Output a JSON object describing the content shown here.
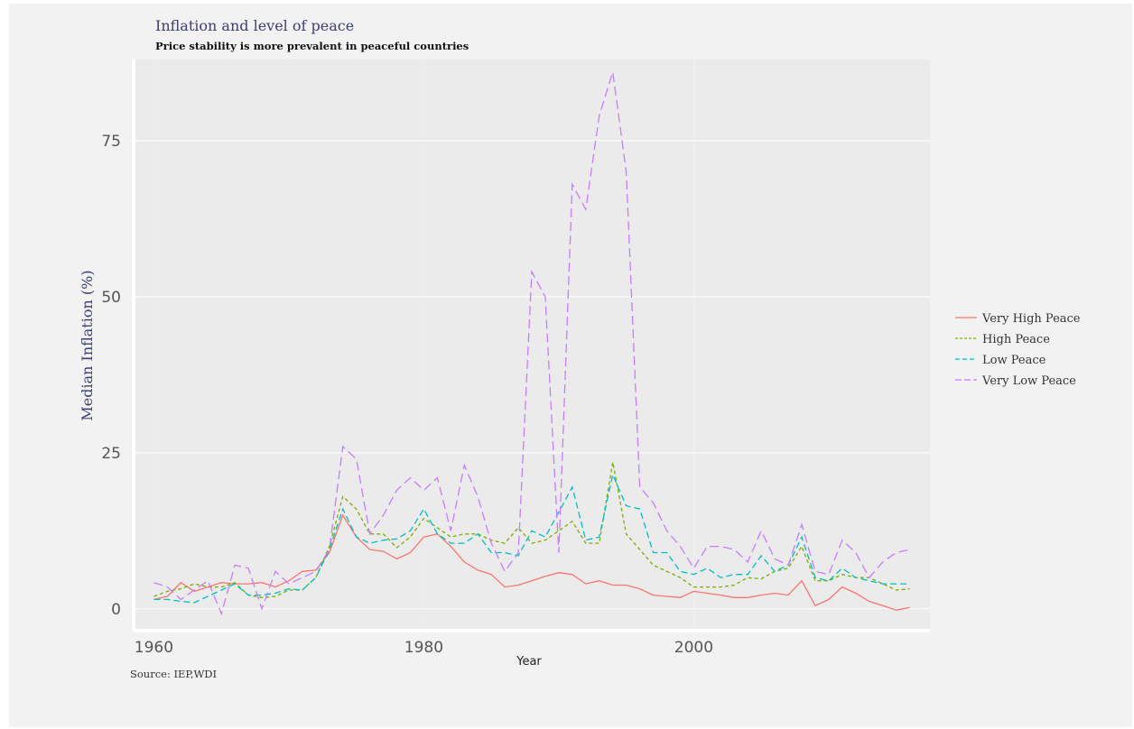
{
  "chart_data": {
    "type": "line",
    "title": "Inflation and level of peace",
    "subtitle": "Price stability is more prevalent in peaceful countries",
    "xlabel": "Year",
    "ylabel": "Median Inflation (%)",
    "caption": "Source: IEP,WDI",
    "xlim": [
      1958.5,
      2017.5
    ],
    "ylim": [
      -3.5,
      88
    ],
    "x_ticks": [
      1960,
      1980,
      2000
    ],
    "y_ticks": [
      0,
      25,
      50,
      75
    ],
    "grid": true,
    "legend_position": "right",
    "x": [
      1960,
      1961,
      1962,
      1963,
      1964,
      1965,
      1966,
      1967,
      1968,
      1969,
      1970,
      1971,
      1972,
      1973,
      1974,
      1975,
      1976,
      1977,
      1978,
      1979,
      1980,
      1981,
      1982,
      1983,
      1984,
      1985,
      1986,
      1987,
      1988,
      1989,
      1990,
      1991,
      1992,
      1993,
      1994,
      1995,
      1996,
      1997,
      1998,
      1999,
      2000,
      2001,
      2002,
      2003,
      2004,
      2005,
      2006,
      2007,
      2008,
      2009,
      2010,
      2011,
      2012,
      2013,
      2014,
      2015,
      2016
    ],
    "series": [
      {
        "name": "Very High Peace",
        "color": "#f8766d",
        "dash": "none",
        "values": [
          1.5,
          2.0,
          4.2,
          2.8,
          3.5,
          4.2,
          4.0,
          4.0,
          4.2,
          3.5,
          4.5,
          6.0,
          6.2,
          9.0,
          15.0,
          11.5,
          9.5,
          9.2,
          8.0,
          9.0,
          11.5,
          12.0,
          10.0,
          7.5,
          6.2,
          5.5,
          3.5,
          3.8,
          4.5,
          5.2,
          5.8,
          5.5,
          4.0,
          4.5,
          3.8,
          3.8,
          3.2,
          2.2,
          2.0,
          1.8,
          2.8,
          2.5,
          2.2,
          1.8,
          1.8,
          2.2,
          2.5,
          2.2,
          4.5,
          0.5,
          1.5,
          3.5,
          2.5,
          1.2,
          0.5,
          -0.2,
          0.2
        ]
      },
      {
        "name": "High Peace",
        "color": "#7cae00",
        "dash": "4 3",
        "values": [
          2.0,
          2.8,
          3.2,
          4.0,
          3.5,
          3.5,
          4.2,
          2.2,
          1.8,
          2.0,
          3.0,
          3.0,
          5.0,
          10.0,
          18.0,
          16.0,
          12.0,
          12.0,
          9.8,
          11.5,
          14.5,
          13.0,
          11.5,
          12.0,
          12.0,
          11.0,
          10.5,
          13.0,
          10.5,
          11.0,
          12.5,
          14.0,
          10.5,
          10.5,
          23.5,
          12.0,
          9.5,
          7.0,
          6.0,
          5.0,
          3.5,
          3.5,
          3.5,
          3.8,
          5.0,
          4.8,
          6.0,
          6.5,
          10.0,
          4.5,
          4.5,
          5.5,
          5.0,
          5.0,
          4.0,
          3.0,
          3.2
        ]
      },
      {
        "name": "Low Peace",
        "color": "#00bfc4",
        "dash": "7 4",
        "values": [
          1.5,
          1.5,
          1.2,
          1.0,
          2.0,
          3.0,
          4.0,
          2.2,
          2.2,
          2.5,
          3.2,
          3.0,
          5.0,
          9.5,
          16.0,
          11.5,
          10.5,
          11.0,
          11.2,
          12.5,
          16.0,
          12.0,
          10.5,
          10.5,
          12.0,
          9.0,
          9.0,
          8.5,
          12.5,
          11.5,
          15.5,
          19.5,
          11.0,
          11.5,
          21.5,
          16.5,
          16.0,
          9.0,
          9.0,
          6.0,
          5.5,
          6.5,
          5.0,
          5.5,
          5.5,
          8.5,
          6.0,
          7.0,
          11.5,
          5.0,
          4.5,
          6.5,
          5.0,
          4.5,
          4.0,
          4.0,
          4.0
        ]
      },
      {
        "name": "Very Low Peace",
        "color": "#c77cff",
        "dash": "10 5",
        "values": [
          4.2,
          3.5,
          1.5,
          3.0,
          4.5,
          -0.8,
          7.0,
          6.5,
          0.0,
          6.0,
          4.0,
          5.0,
          6.0,
          9.5,
          26.0,
          24.0,
          12.0,
          15.0,
          19.0,
          21.0,
          19.0,
          21.0,
          12.5,
          23.0,
          18.0,
          10.5,
          6.0,
          9.0,
          54.0,
          50.0,
          9.0,
          68.0,
          64.0,
          79.0,
          86.0,
          70.0,
          19.5,
          17.0,
          12.5,
          10.0,
          6.5,
          10.0,
          10.0,
          9.5,
          7.5,
          12.5,
          8.0,
          7.0,
          13.5,
          6.0,
          5.5,
          11.0,
          9.0,
          5.0,
          7.5,
          9.0,
          9.5
        ]
      }
    ]
  }
}
